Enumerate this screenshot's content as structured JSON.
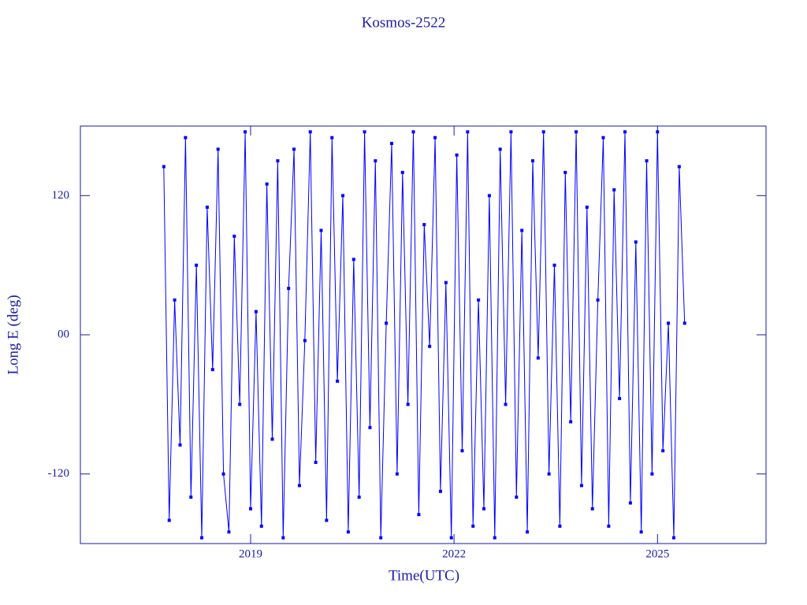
{
  "chart_data": {
    "type": "line",
    "title": "Kosmos-2522",
    "x_label": "Time(UTC)",
    "y_label": "Long E (deg)",
    "xlim": [
      2016.49,
      2026.6
    ],
    "xticks": [
      2019,
      2022,
      2025
    ],
    "ylim": [
      -180,
      180
    ],
    "yticks": [
      -120,
      {
        "value": 0,
        "label": "00"
      },
      120
    ],
    "axis_color": "#1a1aa6",
    "series": [
      {
        "color": "#0000ff",
        "x": [
          2017.72,
          2017.8,
          2017.88,
          2017.96,
          2018.04,
          2018.12,
          2018.2,
          2018.28,
          2018.36,
          2018.44,
          2018.52,
          2018.6,
          2018.68,
          2018.76,
          2018.84,
          2018.92,
          2019.0,
          2019.08,
          2019.16,
          2019.24,
          2019.32,
          2019.4,
          2019.48,
          2019.56,
          2019.64,
          2019.72,
          2019.8,
          2019.88,
          2019.96,
          2020.04,
          2020.12,
          2020.2,
          2020.28,
          2020.36,
          2020.44,
          2020.52,
          2020.6,
          2020.68,
          2020.76,
          2020.84,
          2020.92,
          2021.0,
          2021.08,
          2021.16,
          2021.24,
          2021.32,
          2021.4,
          2021.48,
          2021.56,
          2021.64,
          2021.72,
          2021.8,
          2021.88,
          2021.96,
          2022.04,
          2022.12,
          2022.2,
          2022.28,
          2022.36,
          2022.44,
          2022.52,
          2022.6,
          2022.68,
          2022.76,
          2022.84,
          2022.92,
          2023.0,
          2023.08,
          2023.16,
          2023.24,
          2023.32,
          2023.4,
          2023.48,
          2023.56,
          2023.64,
          2023.72,
          2023.8,
          2023.88,
          2023.96,
          2024.04,
          2024.12,
          2024.2,
          2024.28,
          2024.36,
          2024.44,
          2024.52,
          2024.6,
          2024.68,
          2024.76,
          2024.84,
          2024.92,
          2025.0,
          2025.08,
          2025.16,
          2025.24,
          2025.32,
          2025.4
        ],
        "values": [
          145,
          -160,
          30,
          -95,
          170,
          -140,
          60,
          -175,
          110,
          -30,
          160,
          -120,
          -170,
          85,
          -60,
          175,
          -150,
          20,
          -165,
          130,
          -90,
          150,
          -175,
          40,
          160,
          -130,
          -5,
          175,
          -110,
          90,
          -160,
          170,
          -40,
          120,
          -170,
          65,
          -140,
          175,
          -80,
          150,
          -175,
          10,
          165,
          -120,
          140,
          -60,
          175,
          -155,
          95,
          -10,
          170,
          -135,
          45,
          -175,
          155,
          -100,
          175,
          -165,
          30,
          -150,
          120,
          -175,
          160,
          -60,
          175,
          -140,
          90,
          -170,
          150,
          -20,
          175,
          -120,
          60,
          -165,
          140,
          -75,
          175,
          -130,
          110,
          -150,
          30,
          170,
          -165,
          125,
          -55,
          175,
          -145,
          80,
          -170,
          150,
          -120,
          175,
          -100,
          10,
          -175,
          145,
          10
        ]
      }
    ]
  }
}
